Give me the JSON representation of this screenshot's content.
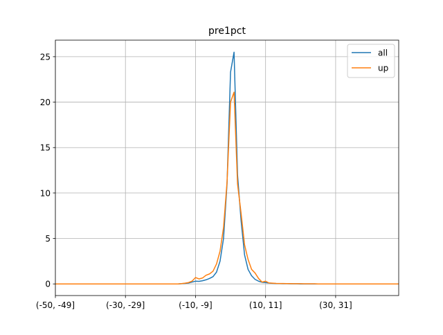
{
  "chart_data": {
    "type": "line",
    "title": "pre1pct",
    "xlabel": "",
    "ylabel": "",
    "x_range": [
      -50,
      48
    ],
    "xlim": [
      -50,
      48
    ],
    "ylim": [
      -1.28,
      26.82
    ],
    "grid": true,
    "legend_position": "top-right",
    "x_ticks": [
      {
        "x": -50,
        "label": "(-50, -49]"
      },
      {
        "x": -30,
        "label": "(-30, -29]"
      },
      {
        "x": -10,
        "label": "(-10, -9]"
      },
      {
        "x": 10,
        "label": "(10, 11]"
      },
      {
        "x": 30,
        "label": "(30, 31]"
      }
    ],
    "y_ticks": [
      0,
      5,
      10,
      15,
      20,
      25
    ],
    "colors": {
      "all": "#1f77b4",
      "up": "#ff7f0e"
    },
    "series": [
      {
        "name": "all",
        "color": "#1f77b4",
        "values": [
          0,
          0,
          0,
          0,
          0,
          0,
          0,
          0,
          0,
          0,
          0,
          0,
          0,
          0,
          0,
          0,
          0,
          0,
          0,
          0,
          0,
          0,
          0,
          0,
          0,
          0,
          0,
          0,
          0,
          0,
          0,
          0,
          0,
          0,
          0,
          0,
          0.02,
          0.05,
          0.1,
          0.2,
          0.3,
          0.28,
          0.35,
          0.45,
          0.6,
          0.8,
          1.3,
          2.5,
          5.0,
          11.0,
          23.3,
          25.5,
          12.0,
          7.0,
          3.2,
          1.6,
          0.9,
          0.5,
          0.3,
          0.18,
          0.15,
          0.1,
          0.06,
          0.04,
          0.03,
          0.02,
          0.02,
          0.01,
          0.01,
          0.01,
          0,
          0,
          0,
          0,
          0,
          0,
          0,
          0,
          0,
          0,
          0,
          0,
          0,
          0,
          0,
          0,
          0,
          0,
          0,
          0,
          0,
          0,
          0,
          0,
          0,
          0,
          0,
          0,
          0
        ]
      },
      {
        "name": "up",
        "color": "#ff7f0e",
        "values": [
          0,
          0,
          0,
          0,
          0,
          0,
          0,
          0,
          0,
          0,
          0,
          0,
          0,
          0,
          0,
          0,
          0,
          0,
          0,
          0,
          0,
          0,
          0,
          0,
          0,
          0,
          0,
          0,
          0,
          0,
          0,
          0,
          0,
          0,
          0,
          0,
          0.03,
          0.08,
          0.15,
          0.3,
          0.7,
          0.55,
          0.65,
          0.95,
          1.1,
          1.4,
          2.2,
          3.6,
          6.2,
          11.2,
          20.0,
          21.1,
          11.0,
          7.8,
          4.3,
          2.7,
          1.6,
          1.2,
          0.6,
          0.2,
          0.3,
          0.1,
          0.08,
          0.05,
          0.04,
          0.04,
          0.03,
          0.03,
          0.02,
          0.02,
          0.02,
          0.01,
          0.01,
          0.01,
          0.01,
          0,
          0,
          0,
          0,
          0,
          0,
          0,
          0,
          0,
          0,
          0,
          0,
          0,
          0,
          0,
          0,
          0,
          0,
          0,
          0,
          0,
          0,
          0,
          0
        ]
      }
    ]
  }
}
